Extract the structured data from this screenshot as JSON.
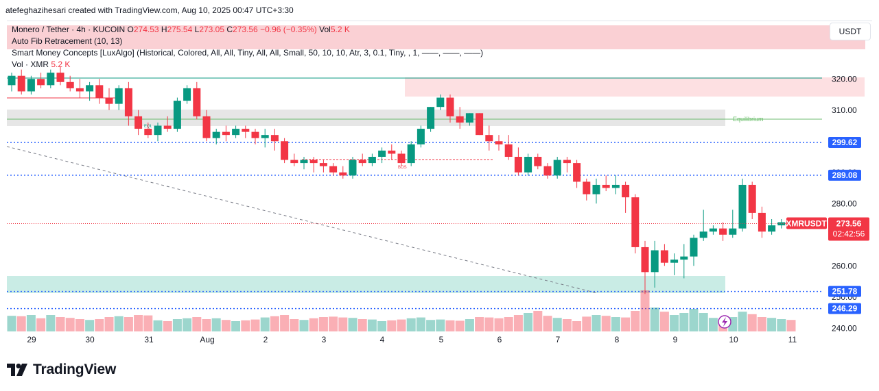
{
  "header": {
    "attribution": "atefeghazihesari created with TradingView.com, Aug 10, 2025 00:47 UTC+3:30"
  },
  "legend": {
    "symbol": "Monero / Tether · 4h · KUCOIN",
    "o_label": "O",
    "o": "274.53",
    "h_label": "H",
    "h": "275.54",
    "l_label": "L",
    "l": "273.05",
    "c_label": "C",
    "c": "273.56",
    "change": "−0.96 (−0.35%)",
    "vol_label": "Vol",
    "vol": "5.2 K",
    "indicator1": "Auto Fib Retracement (10, 13)",
    "indicator2": "Smart Money Concepts [LuxAlgo] (Historical, Colored, All, All, Tiny, All, All, Small, 50, 10, 10, Atr, 3, 0.1, Tiny, , 1, ——, ——, ——)",
    "vol_row_label": "Vol · XMR",
    "vol_row_value": "5.2 K"
  },
  "currency_button": "USDT",
  "annotations": {
    "equilibrium": "Equilibrium",
    "bos": "BOS",
    "eql": "EQL"
  },
  "brand": {
    "name": "TradingView"
  },
  "colors": {
    "up": "#089981",
    "down": "#f23645",
    "blue_level": "#2962ff",
    "accent": "#2962ff"
  },
  "chart_data": {
    "type": "candlestick",
    "symbol": "XMRUSDT",
    "timeframe": "4h",
    "y_ticks": [
      240,
      250,
      260,
      270,
      280,
      290,
      300,
      310,
      320
    ],
    "x_ticks": [
      "29",
      "30",
      "31",
      "Aug",
      "2",
      "3",
      "4",
      "5",
      "6",
      "7",
      "8",
      "9",
      "10",
      "11"
    ],
    "ylim": [
      235,
      330
    ],
    "last_price": {
      "label": "XMRUSDT",
      "value": "273.56",
      "countdown": "02:42:56"
    },
    "levels": [
      {
        "value": 299.62,
        "label": "299.62"
      },
      {
        "value": 289.08,
        "label": "289.08"
      },
      {
        "value": 251.78,
        "label": "251.78"
      },
      {
        "value": 246.29,
        "label": "246.29"
      }
    ],
    "candles": [
      [
        318,
        322,
        316,
        321
      ],
      [
        321,
        323,
        315,
        316
      ],
      [
        316,
        321,
        315,
        320
      ],
      [
        320,
        322,
        317,
        318
      ],
      [
        318,
        323,
        317,
        322
      ],
      [
        322,
        324,
        318,
        319
      ],
      [
        319,
        321,
        316,
        317
      ],
      [
        317,
        320,
        314,
        316
      ],
      [
        316,
        319,
        313,
        318
      ],
      [
        318,
        320,
        312,
        314
      ],
      [
        314,
        317,
        310,
        312
      ],
      [
        312,
        318,
        310,
        317
      ],
      [
        317,
        319,
        305,
        308
      ],
      [
        308,
        310,
        302,
        304
      ],
      [
        304,
        306,
        301,
        302
      ],
      [
        302,
        306,
        300,
        305
      ],
      [
        305,
        308,
        303,
        304
      ],
      [
        304,
        314,
        303,
        313
      ],
      [
        313,
        318,
        312,
        317
      ],
      [
        317,
        319,
        307,
        308
      ],
      [
        308,
        310,
        300,
        301
      ],
      [
        301,
        304,
        299,
        303
      ],
      [
        303,
        305,
        300,
        302
      ],
      [
        302,
        305,
        301,
        304
      ],
      [
        304,
        305,
        301,
        303
      ],
      [
        303,
        304,
        299,
        301
      ],
      [
        301,
        304,
        298,
        302
      ],
      [
        302,
        304,
        297,
        300
      ],
      [
        300,
        301,
        293,
        294
      ],
      [
        294,
        296,
        292,
        293
      ],
      [
        293,
        295,
        291,
        294
      ],
      [
        294,
        295,
        290,
        293
      ],
      [
        293,
        294,
        290,
        292
      ],
      [
        292,
        293,
        289,
        290
      ],
      [
        290,
        292,
        288,
        289
      ],
      [
        289,
        295,
        288,
        294
      ],
      [
        294,
        296,
        292,
        293
      ],
      [
        293,
        296,
        292,
        295
      ],
      [
        295,
        298,
        293,
        297
      ],
      [
        297,
        299,
        294,
        296
      ],
      [
        296,
        297,
        292,
        293
      ],
      [
        293,
        300,
        292,
        299
      ],
      [
        299,
        305,
        298,
        304
      ],
      [
        304,
        311,
        303,
        311
      ],
      [
        311,
        315,
        310,
        314
      ],
      [
        314,
        315,
        306,
        308
      ],
      [
        308,
        311,
        304,
        306
      ],
      [
        306,
        309,
        305,
        309
      ],
      [
        309,
        309,
        302,
        302
      ],
      [
        302,
        305,
        297,
        300
      ],
      [
        300,
        302,
        297,
        299
      ],
      [
        299,
        302,
        294,
        295
      ],
      [
        295,
        298,
        289,
        290
      ],
      [
        290,
        296,
        289,
        295
      ],
      [
        295,
        296,
        291,
        292
      ],
      [
        292,
        293,
        288,
        289
      ],
      [
        289,
        295,
        288,
        294
      ],
      [
        294,
        295,
        290,
        293
      ],
      [
        293,
        294,
        285,
        287
      ],
      [
        287,
        288,
        281,
        283
      ],
      [
        283,
        288,
        280,
        286
      ],
      [
        286,
        289,
        284,
        285
      ],
      [
        285,
        289,
        283,
        286
      ],
      [
        286,
        287,
        277,
        282
      ],
      [
        282,
        283,
        264,
        266
      ],
      [
        266,
        268,
        251,
        258
      ],
      [
        258,
        268,
        253,
        265
      ],
      [
        265,
        267,
        260,
        261
      ],
      [
        261,
        264,
        257,
        262
      ],
      [
        262,
        267,
        256,
        263
      ],
      [
        263,
        270,
        260,
        269
      ],
      [
        269,
        278,
        268,
        271
      ],
      [
        271,
        273,
        270,
        272
      ],
      [
        272,
        274,
        268,
        270
      ],
      [
        270,
        278,
        269,
        272
      ],
      [
        272,
        288,
        271,
        286
      ],
      [
        286,
        287,
        275,
        277
      ],
      [
        277,
        279,
        269,
        271
      ],
      [
        271,
        275,
        270,
        273
      ],
      [
        273,
        275,
        272,
        274
      ],
      [
        274.53,
        275.54,
        273.05,
        273.56
      ]
    ],
    "volumes": [
      38,
      37,
      40,
      32,
      40,
      35,
      33,
      30,
      28,
      30,
      35,
      37,
      35,
      40,
      39,
      27,
      25,
      30,
      32,
      35,
      30,
      32,
      28,
      25,
      27,
      29,
      34,
      37,
      40,
      30,
      28,
      32,
      35,
      36,
      34,
      33,
      30,
      29,
      25,
      27,
      29,
      32,
      34,
      28,
      29,
      27,
      26,
      30,
      35,
      34,
      32,
      35,
      40,
      45,
      50,
      38,
      33,
      30,
      25,
      36,
      40,
      38,
      35,
      34,
      50,
      100,
      58,
      48,
      40,
      45,
      55,
      45,
      33,
      30,
      35,
      48,
      42,
      35,
      33,
      30,
      28
    ]
  }
}
